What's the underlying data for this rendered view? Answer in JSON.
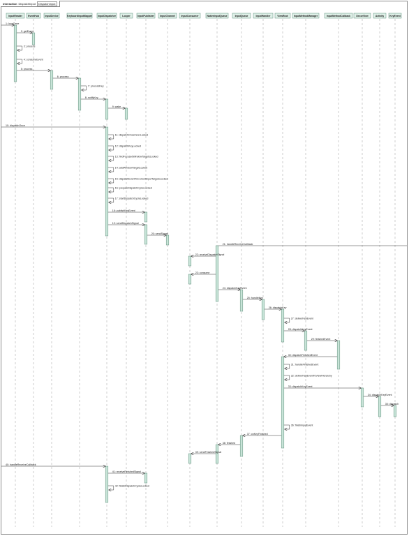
{
  "frame": {
    "keyword": "interaction",
    "name": "DispatchInput",
    "tag": "DispatchInput"
  },
  "participants": [
    "InputReader",
    "EventHub",
    "InputDevice",
    "KeyboardInputMapper",
    "InputDispatcher",
    "Looper",
    "InputPublisher",
    "InputChannel",
    "InputConsumer",
    "NativeInputQueue",
    "InputQueue",
    "InputHandler",
    "ViewRoot",
    "InputMethodManager",
    "InputMethodCallback",
    "DecorView",
    "Activity",
    "KeyEvent"
  ],
  "messages": [
    {
      "from": -1,
      "to": 0,
      "label": "1: loopOnce"
    },
    {
      "from": 0,
      "to": 1,
      "label": "2: getEvent"
    },
    {
      "from": 0,
      "to": 0,
      "label": "3: process"
    },
    {
      "from": 0,
      "to": 0,
      "label": "4: consumeEvent"
    },
    {
      "from": 0,
      "to": 2,
      "label": "5: process"
    },
    {
      "from": 2,
      "to": 3,
      "label": "6: process"
    },
    {
      "from": 3,
      "to": 3,
      "label": "7: processKey"
    },
    {
      "from": 3,
      "to": 4,
      "label": "8: notifyKey"
    },
    {
      "from": 4,
      "to": 5,
      "label": "9: wake"
    },
    {
      "from": -1,
      "to": 4,
      "label": "10: dispatchOnce"
    },
    {
      "from": 4,
      "to": 4,
      "label": "11: dispatchOnceInnerLocked"
    },
    {
      "from": 4,
      "to": 4,
      "label": "12: dispatchKeyLocked"
    },
    {
      "from": 4,
      "to": 4,
      "label": "13: findFocusedWindowTargetsLocked"
    },
    {
      "from": 4,
      "to": 4,
      "label": "14: addWindowTargetLocked"
    },
    {
      "from": 4,
      "to": 4,
      "label": "15: dispatchEventToCurrentInputTargetsLocked"
    },
    {
      "from": 4,
      "to": 4,
      "label": "16: prepareDispatchCycleLocked"
    },
    {
      "from": 4,
      "to": 4,
      "label": "17: startDispatchCycleLocked"
    },
    {
      "from": 4,
      "to": 6,
      "label": "18: publishKeyEvent"
    },
    {
      "from": 4,
      "to": 6,
      "label": "19: sendDispatchSignal"
    },
    {
      "from": 6,
      "to": 7,
      "label": "20: sendSignal"
    },
    {
      "from": 9,
      "to": -2,
      "label": "21: handleReceiveCallback"
    },
    {
      "from": 9,
      "to": 8,
      "label": "22: receiveDispatchSignal"
    },
    {
      "from": 9,
      "to": 8,
      "label": "23: consume"
    },
    {
      "from": 9,
      "to": 10,
      "label": "24: dispatchKeyEvent"
    },
    {
      "from": 10,
      "to": 11,
      "label": "25: handleKey"
    },
    {
      "from": 11,
      "to": 12,
      "label": "26: dispatchKey"
    },
    {
      "from": 12,
      "to": 12,
      "label": "27: deliverKeyEvent"
    },
    {
      "from": 12,
      "to": 13,
      "label": "28: dispatchKeyEvent"
    },
    {
      "from": 13,
      "to": 14,
      "label": "29: finishedEvent"
    },
    {
      "from": 14,
      "to": 12,
      "label": "30: dispatchFinishedEvent"
    },
    {
      "from": 12,
      "to": 12,
      "label": "31: handleFinishedEvent"
    },
    {
      "from": 12,
      "to": 12,
      "label": "32: deliverKeyEventToViewHierarchy"
    },
    {
      "from": 12,
      "to": 15,
      "label": "33: dispatchKeyEvent"
    },
    {
      "from": 15,
      "to": 16,
      "label": "34: dispatchKeyEvent"
    },
    {
      "from": 16,
      "to": 17,
      "label": "35: dispatch"
    },
    {
      "from": 12,
      "to": 12,
      "label": "36: finishInputEvent"
    },
    {
      "from": 12,
      "to": 10,
      "label": "37: onKeyFinished"
    },
    {
      "from": 10,
      "to": 9,
      "label": "38: finished"
    },
    {
      "from": 9,
      "to": 8,
      "label": "39: sendFinishedSignal"
    },
    {
      "from": -1,
      "to": 4,
      "label": "40: handleReceiveCallback"
    },
    {
      "from": 4,
      "to": 6,
      "label": "41: receiveFinishedSignal"
    },
    {
      "from": 4,
      "to": 4,
      "label": "42: finishDispatchCycleLocked"
    }
  ],
  "colors": {
    "activation_fill": "#c8e4d8",
    "activation_stroke": "#5f8f7c",
    "participant_fill": "#dff0e8",
    "line": "#333333",
    "lifeline": "#9a9a9a"
  }
}
